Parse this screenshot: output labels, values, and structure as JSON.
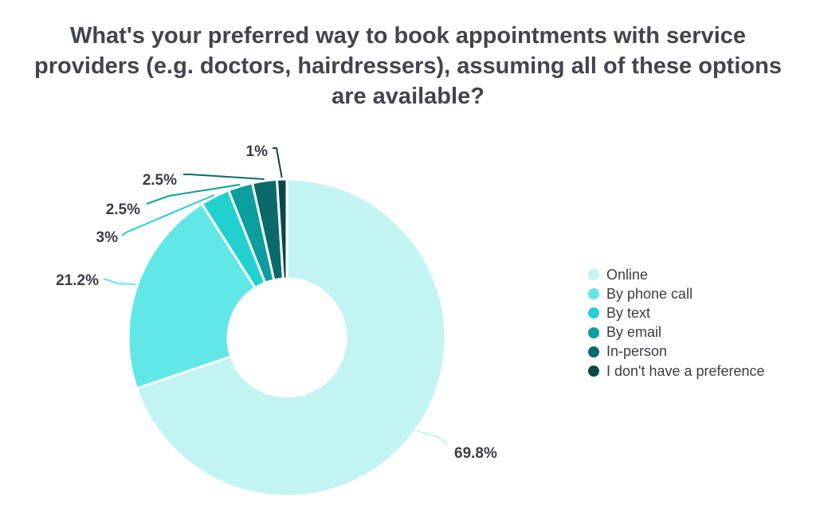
{
  "chart_data": {
    "type": "pie",
    "title": "What's your preferred way to book appointments with service providers (e.g. doctors, hairdressers), assuming all of these options are available?",
    "categories": [
      "Online",
      "By phone call",
      "By text",
      "By email",
      "In-person",
      "I don't have a preference"
    ],
    "values": [
      69.8,
      21.2,
      3,
      2.5,
      2.5,
      1
    ],
    "value_labels": [
      "69.8%",
      "21.2%",
      "3%",
      "2.5%",
      "2.5%",
      "1%"
    ],
    "colors": [
      "#c2f4f3",
      "#62e7e7",
      "#22d0d0",
      "#0c9e9e",
      "#0a6a6a",
      "#0b4747"
    ],
    "donut": true,
    "legend_position": "right"
  }
}
